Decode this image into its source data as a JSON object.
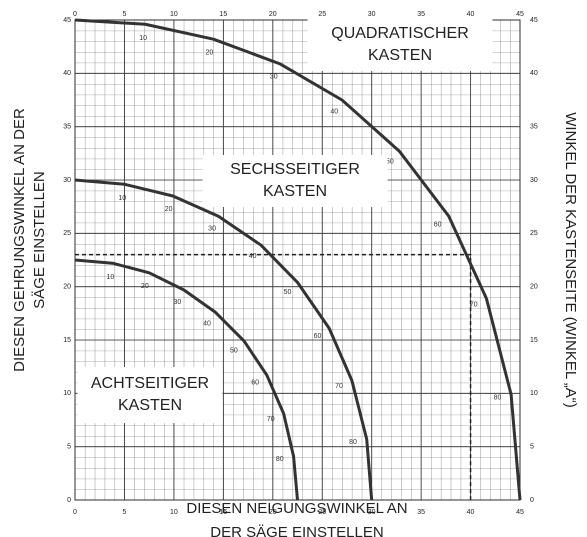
{
  "chart_data": {
    "type": "line",
    "x_title": [
      "DIESEN NEIGUNGSWINKEL AN",
      "DER SÄGE EINSTELLEN"
    ],
    "y_title": [
      "DIESEN GEHRUNGSWINKEL AN DER",
      "SÄGE EINSTELLEN"
    ],
    "y2_title": "WINKEL DER KASTENSEITE (WINKEL „A“)",
    "xlim": [
      0,
      45
    ],
    "ylim": [
      0,
      45
    ],
    "xticks": [
      0,
      5,
      10,
      15,
      20,
      25,
      30,
      35,
      40,
      45
    ],
    "yticks": [
      0,
      5,
      10,
      15,
      20,
      25,
      30,
      35,
      40,
      45
    ],
    "grid": true,
    "arc_ticks": [
      10,
      20,
      30,
      40,
      50,
      60,
      70,
      80
    ],
    "guide": {
      "x": 40,
      "y": 23
    },
    "series": [
      {
        "name": [
          "QUADRATISCHER",
          "KASTEN"
        ],
        "color": "#333333",
        "x": [
          0,
          7.1,
          14,
          20.7,
          27,
          32.8,
          37.8,
          41.6,
          44.1,
          45
        ],
        "values": [
          45,
          44.6,
          43.2,
          40.9,
          37.5,
          32.7,
          26.6,
          18.9,
          9.9,
          0
        ]
      },
      {
        "name": [
          "SECHSSEITIGER",
          "KASTEN"
        ],
        "color": "#333333",
        "x": [
          0,
          5,
          9.9,
          14.5,
          18.8,
          22.5,
          25.7,
          28,
          29.5,
          30
        ],
        "values": [
          30,
          29.6,
          28.5,
          26.6,
          23.9,
          20.4,
          16.1,
          11.2,
          5.7,
          0
        ]
      },
      {
        "name": [
          "ACHTSEITIGER",
          "KASTEN"
        ],
        "color": "#333333",
        "x": [
          0,
          3.8,
          7.5,
          11,
          14.2,
          17.1,
          19.4,
          21.1,
          22.1,
          22.5
        ],
        "values": [
          22.5,
          22.2,
          21.3,
          19.7,
          17.6,
          14.9,
          11.7,
          8.1,
          4.1,
          0
        ]
      }
    ]
  }
}
